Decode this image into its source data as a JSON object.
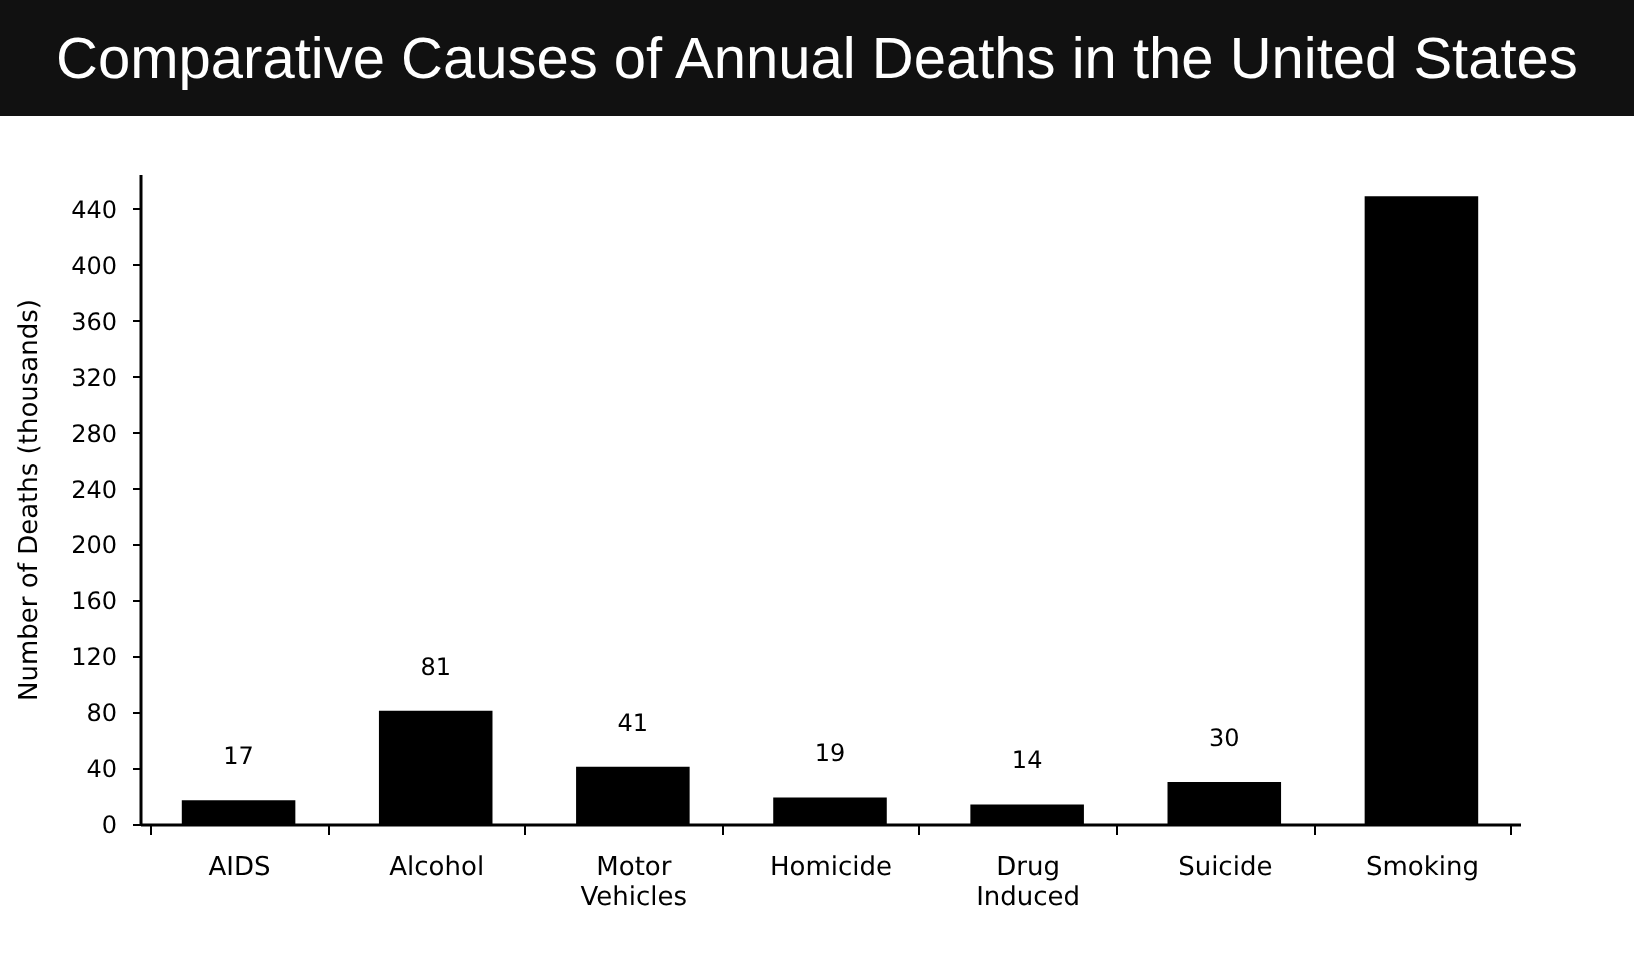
{
  "chart_data": {
    "type": "bar",
    "title": "Comparative Causes of Annual Deaths in the United States",
    "ylabel": "Number of Deaths (thousands)",
    "categories": [
      "AIDS",
      "Alcohol",
      "Motor Vehicles",
      "Homicide",
      "Drug Induced",
      "Suicide",
      "Smoking"
    ],
    "values": [
      17,
      81,
      41,
      19,
      14,
      30,
      449
    ],
    "value_labels": [
      "17",
      "81",
      "41",
      "19",
      "14",
      "30",
      null
    ],
    "color": "#000000",
    "ylim": [
      0,
      465
    ],
    "yticks": [
      0,
      40,
      80,
      120,
      160,
      200,
      240,
      280,
      320,
      360,
      400,
      440
    ],
    "grid": false
  }
}
